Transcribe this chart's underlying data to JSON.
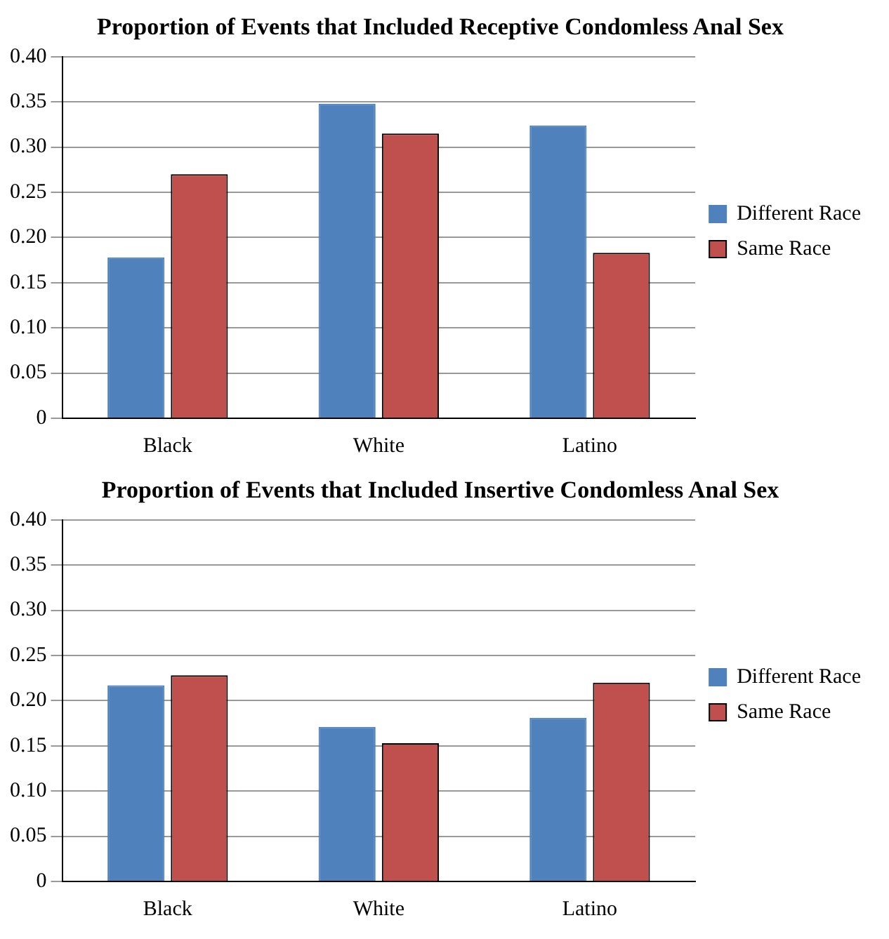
{
  "chart_data": [
    {
      "type": "bar",
      "title": "Proportion of Events that Included Receptive Condomless Anal Sex",
      "categories": [
        "Black",
        "White",
        "Latino"
      ],
      "series": [
        {
          "name": "Different Race",
          "color": "#4f81bd",
          "values": [
            0.178,
            0.348,
            0.324
          ]
        },
        {
          "name": "Same Race",
          "color": "#c0504d",
          "values": [
            0.27,
            0.315,
            0.183
          ]
        }
      ],
      "ylim": [
        0,
        0.4
      ],
      "yticks": [
        {
          "value": 0,
          "label": "0"
        },
        {
          "value": 0.05,
          "label": "0.05"
        },
        {
          "value": 0.1,
          "label": "0.10"
        },
        {
          "value": 0.15,
          "label": "0.15"
        },
        {
          "value": 0.2,
          "label": "0.20"
        },
        {
          "value": 0.25,
          "label": "0.25"
        },
        {
          "value": 0.3,
          "label": "0.30"
        },
        {
          "value": 0.35,
          "label": "0.35"
        },
        {
          "value": 0.4,
          "label": "0.40"
        }
      ],
      "grid": "y",
      "legend": "right"
    },
    {
      "type": "bar",
      "title": "Proportion of Events that Included Insertive Condomless Anal Sex",
      "categories": [
        "Black",
        "White",
        "Latino"
      ],
      "series": [
        {
          "name": "Different Race",
          "color": "#4f81bd",
          "values": [
            0.217,
            0.171,
            0.181
          ]
        },
        {
          "name": "Same Race",
          "color": "#c0504d",
          "values": [
            0.228,
            0.153,
            0.22
          ]
        }
      ],
      "ylim": [
        0,
        0.4
      ],
      "yticks": [
        {
          "value": 0,
          "label": "0"
        },
        {
          "value": 0.05,
          "label": "0.05"
        },
        {
          "value": 0.1,
          "label": "0.10"
        },
        {
          "value": 0.15,
          "label": "0.15"
        },
        {
          "value": 0.2,
          "label": "0.20"
        },
        {
          "value": 0.25,
          "label": "0.25"
        },
        {
          "value": 0.3,
          "label": "0.30"
        },
        {
          "value": 0.35,
          "label": "0.35"
        },
        {
          "value": 0.4,
          "label": "0.40"
        }
      ],
      "grid": "y",
      "legend": "right"
    }
  ]
}
